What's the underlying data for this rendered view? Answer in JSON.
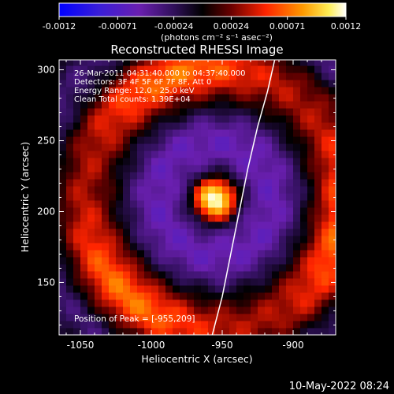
{
  "colorbar": {
    "tick_labels": [
      "-0.0012",
      "-0.00071",
      "-0.00024",
      "0.00024",
      "0.00071",
      "0.0012"
    ],
    "ticks": [
      -0.0012,
      -0.00071,
      -0.00024,
      0.00024,
      0.00071,
      0.0012
    ],
    "range": [
      -0.0012,
      0.0012
    ],
    "units_html": "(photons cm⁻² s⁻¹ asec⁻²)",
    "colors": [
      "#0000ff",
      "#4a1fa0",
      "#7a1fa0",
      "#000000",
      "#a00000",
      "#ff2a00",
      "#ff9a00",
      "#ffff66",
      "#ffffff"
    ]
  },
  "chart_data": {
    "type": "heatmap",
    "title": "Reconstructed RHESSI Image",
    "xlabel": "Heliocentric X (arcsec)",
    "ylabel": "Heliocentric Y (arcsec)",
    "xlim": [
      -1065,
      -870
    ],
    "ylim": [
      113,
      307
    ],
    "x_ticks": [
      -1050,
      -1000,
      -950,
      -900
    ],
    "x_tick_labels": [
      "-1050",
      "-1000",
      "-950",
      "-900"
    ],
    "y_ticks": [
      150,
      200,
      250,
      300
    ],
    "y_tick_labels": [
      "150",
      "200",
      "250",
      "300"
    ],
    "peak": {
      "x": -955,
      "y": 209,
      "label": "Position of Peak = [-955,209]"
    },
    "limb_curve": [
      [
        -957,
        113
      ],
      [
        -950,
        140
      ],
      [
        -944,
        170
      ],
      [
        -938,
        200
      ],
      [
        -932,
        230
      ],
      [
        -925,
        260
      ],
      [
        -918,
        285
      ],
      [
        -913,
        307
      ]
    ],
    "info_lines": [
      "26-Mar-2011 04:31:40.000 to 04:37:40.000",
      "Detectors: 3F 4F 5F 6F 7F 8F, Att 0",
      "Energy Range: 12.0 - 25.0 keV",
      "Clean    Total counts: 1.39E+04"
    ],
    "grid": false
  },
  "footer": {
    "timestamp": "10-May-2022 08:24"
  }
}
